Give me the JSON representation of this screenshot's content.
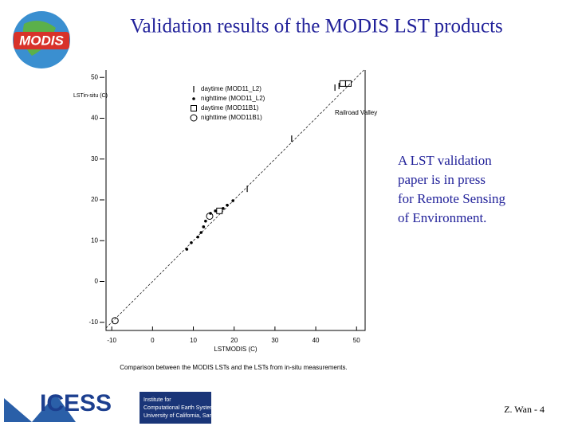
{
  "title": "Validation results of the MODIS LST products",
  "body": [
    "A LST validation",
    "paper is in press",
    "for Remote Sensing",
    "of Environment."
  ],
  "footer": "Z. Wan - 4",
  "logos": {
    "modis": "MODIS",
    "icess": "ICESS",
    "institute": [
      "Institute for",
      "Computational Earth System Science",
      "University of California, Santa Barbara"
    ]
  },
  "chart_data": {
    "type": "scatter",
    "xlabel": "LSTMODIS (C)",
    "ylabel": "LSTin-situ (C)",
    "caption": "Comparison between the MODIS LSTs and the LSTs from in-situ measurements.",
    "annotation": "Railroad Valley",
    "xlim": [
      -11.4,
      52.1
    ],
    "ylim": [
      -12,
      51.8
    ],
    "xticks": [
      -10,
      0,
      10,
      20,
      30,
      40,
      50
    ],
    "yticks": [
      -10,
      0,
      10,
      20,
      30,
      40,
      50
    ],
    "series": [
      {
        "name": "daytime (MOD11_L2)",
        "color": "#000000",
        "marker": "tick",
        "x": [
          23.2,
          34.1,
          44.7,
          45.7
        ],
        "values": [
          22.7,
          35.0,
          47.5,
          47.9
        ]
      },
      {
        "name": "nighttime (MOD11_L2)",
        "color": "#000000",
        "marker": "dot",
        "x": [
          8.4,
          9.5,
          11.1,
          11.9,
          12.5,
          13.0,
          14.2,
          15.4,
          17.3,
          18.3,
          19.7
        ],
        "values": [
          7.9,
          9.5,
          10.9,
          12.0,
          13.4,
          14.8,
          16.7,
          17.3,
          17.9,
          18.7,
          19.8
        ]
      },
      {
        "name": "daytime (MOD11B1)",
        "color": "#000000",
        "marker": "square",
        "x": [
          16.4,
          46.6,
          48.0
        ],
        "values": [
          17.3,
          48.5,
          48.5
        ]
      },
      {
        "name": "nighttime (MOD11B1)",
        "color": "#000000",
        "marker": "circle",
        "x": [
          -9.2,
          14.0
        ],
        "values": [
          -9.6,
          16.0
        ]
      }
    ]
  }
}
